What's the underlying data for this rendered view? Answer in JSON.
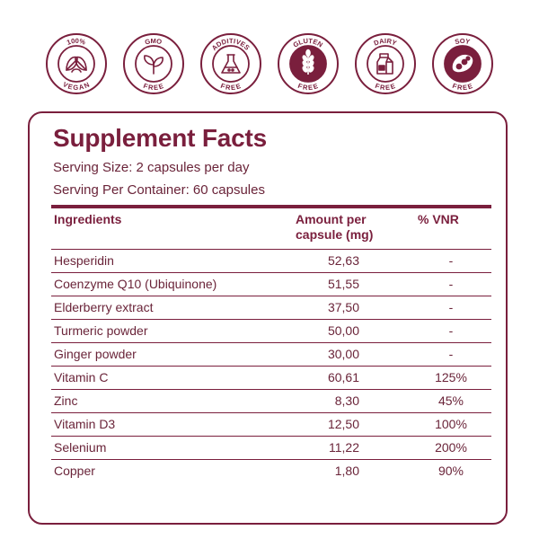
{
  "colors": {
    "primary": "#7a1f3d",
    "text": "#6a2439",
    "background": "#ffffff"
  },
  "badges": [
    {
      "top": "100%",
      "bottom": "VEGAN",
      "icon": "leaves-icon"
    },
    {
      "top": "GMO",
      "bottom": "FREE",
      "icon": "sprout-icon"
    },
    {
      "top": "ADDITIVES",
      "bottom": "FREE",
      "icon": "flask-icon"
    },
    {
      "top": "GLUTEN",
      "bottom": "FREE",
      "icon": "wheat-icon"
    },
    {
      "top": "DAIRY",
      "bottom": "FREE",
      "icon": "milk-carton-icon"
    },
    {
      "top": "SOY",
      "bottom": "FREE",
      "icon": "soybean-icon"
    }
  ],
  "facts": {
    "title": "Supplement Facts",
    "serving_size": "Serving Size: 2 capsules per day",
    "serving_container": "Serving Per Container: 60 capsules",
    "headers": {
      "ingredients": "Ingredients",
      "amount": "Amount per capsule (mg)",
      "vnr": "% VNR"
    },
    "rows": [
      {
        "name": "Hesperidin",
        "amount": "52,63",
        "vnr": "-"
      },
      {
        "name": "Coenzyme Q10 (Ubiquinone)",
        "amount": "51,55",
        "vnr": "-"
      },
      {
        "name": "Elderberry extract",
        "amount": "37,50",
        "vnr": "-"
      },
      {
        "name": "Turmeric powder",
        "amount": "50,00",
        "vnr": "-"
      },
      {
        "name": "Ginger powder",
        "amount": "30,00",
        "vnr": "-"
      },
      {
        "name": "Vitamin C",
        "amount": "60,61",
        "vnr": "125%"
      },
      {
        "name": "Zinc",
        "amount": "8,30",
        "vnr": "45%"
      },
      {
        "name": "Vitamin D3",
        "amount": "12,50",
        "vnr": "100%"
      },
      {
        "name": "Selenium",
        "amount": "11,22",
        "vnr": "200%"
      },
      {
        "name": "Copper",
        "amount": "1,80",
        "vnr": "90%"
      }
    ]
  }
}
